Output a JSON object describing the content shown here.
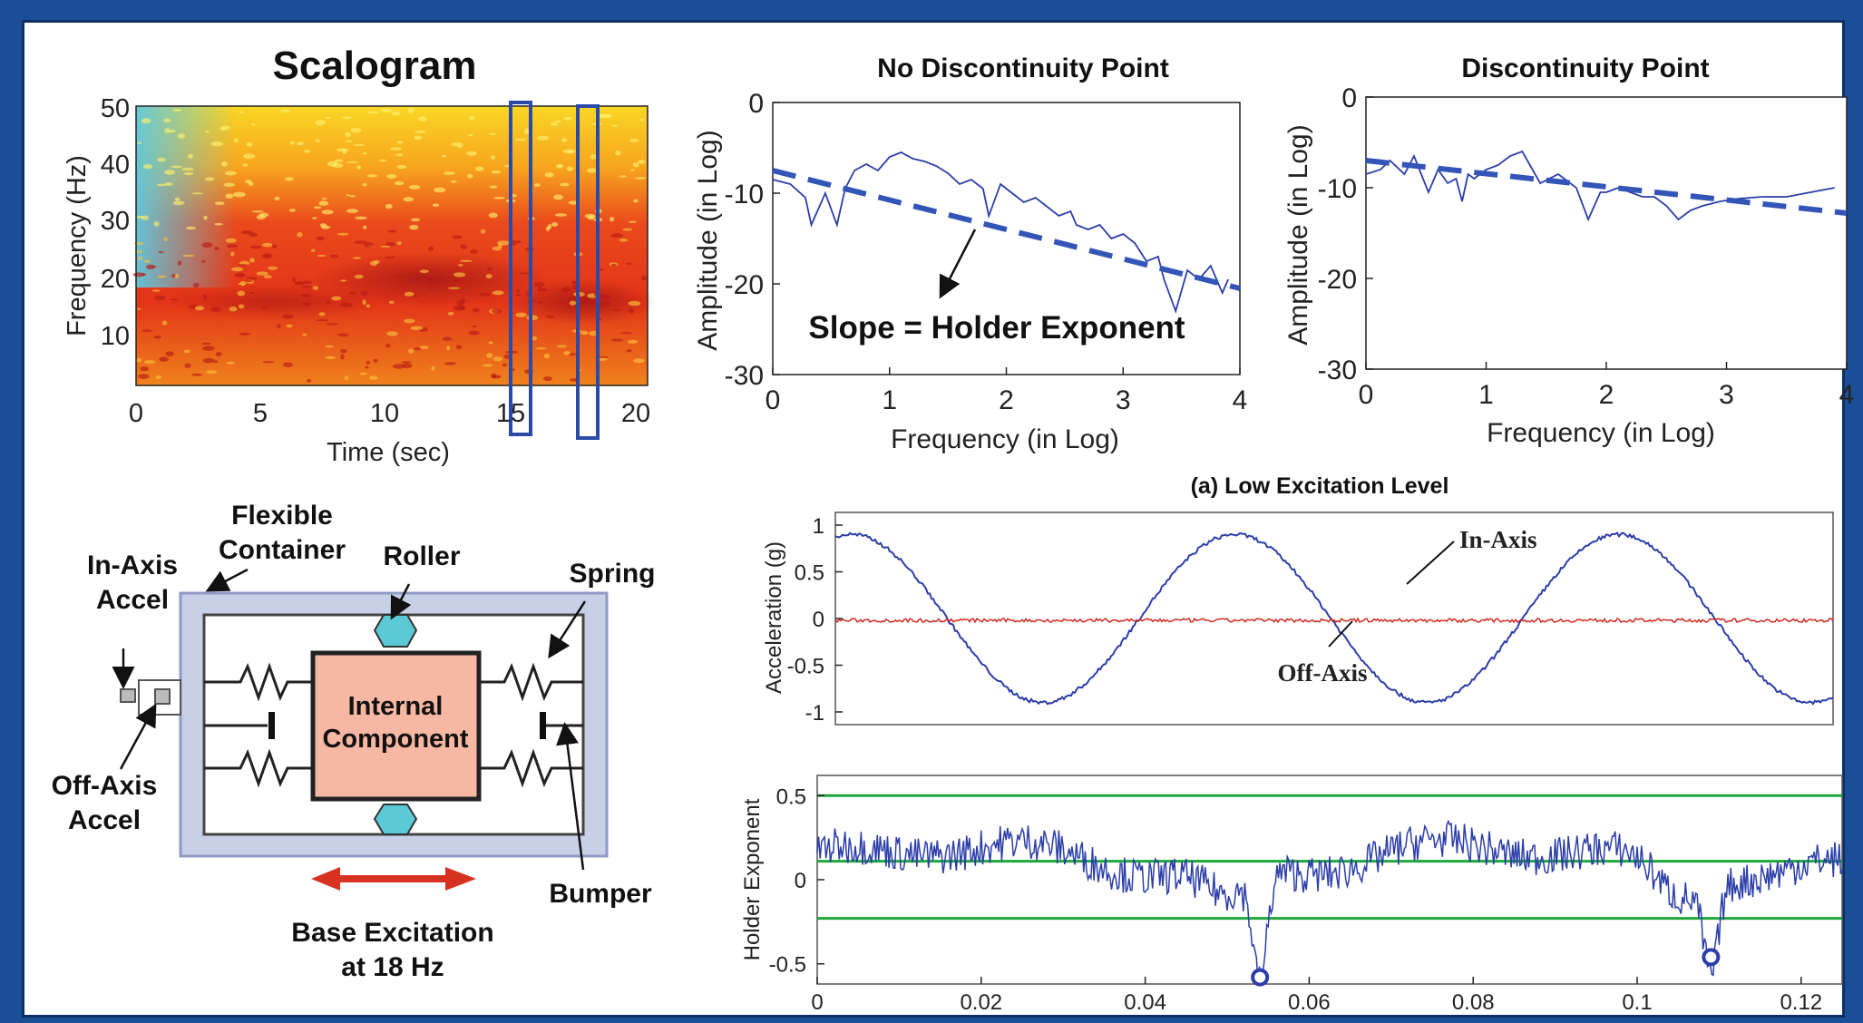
{
  "colors": {
    "frame": "#1a4f97",
    "blue": "#2c3ea8",
    "red": "#d02a20",
    "green": "#1ea83c",
    "dashed": "#3355b8",
    "component": "#f6b7a3",
    "roller": "#5cc9d6",
    "container": "#c8d0e8"
  },
  "scalogram": {
    "title": "Scalogram",
    "xlabel": "Time (sec)",
    "ylabel": "Frequency (Hz)",
    "xticks": [
      "0",
      "5",
      "10",
      "15",
      "20"
    ],
    "yticks": [
      "10",
      "20",
      "30",
      "40",
      "50"
    ]
  },
  "diagram": {
    "in_axis_accel": [
      "In-Axis",
      "Accel"
    ],
    "off_axis_accel": [
      "Off-Axis",
      "Accel"
    ],
    "flexible_container": [
      "Flexible",
      "Container"
    ],
    "roller": "Roller",
    "spring": "Spring",
    "bumper": "Bumper",
    "internal_component": [
      "Internal",
      "Component"
    ],
    "base_excitation": [
      "Base Excitation",
      "at 18 Hz"
    ]
  },
  "annotations": {
    "slope": "Slope = Holder Exponent",
    "caption": "(a) Low Excitation Level",
    "in_axis": "In-Axis",
    "off_axis": "Off-Axis"
  },
  "chart_data": [
    {
      "type": "heatmap",
      "title": "Scalogram",
      "xlabel": "Time (sec)",
      "ylabel": "Frequency (Hz)",
      "xlim": [
        0,
        20.5
      ],
      "ylim": [
        2,
        50
      ],
      "highlight_windows": [
        [
          15.3,
          15.8
        ],
        [
          17.8,
          18.6
        ]
      ]
    },
    {
      "type": "line",
      "title": "No Discontinuity Point",
      "xlabel": "Frequency (in Log)",
      "ylabel": "Amplitude (in Log)",
      "xlim": [
        0,
        4
      ],
      "ylim": [
        -30,
        0
      ],
      "xticks": [
        "0",
        "1",
        "2",
        "3",
        "4"
      ],
      "yticks": [
        "0",
        "-10",
        "-20",
        "-30"
      ],
      "series": [
        {
          "x": [
            0,
            0.15,
            0.28,
            0.33,
            0.45,
            0.55,
            0.62,
            0.7,
            0.8,
            0.9,
            1.0,
            1.1,
            1.2,
            1.3,
            1.4,
            1.5,
            1.6,
            1.7,
            1.8,
            1.85,
            1.95,
            2.05,
            2.15,
            2.25,
            2.35,
            2.45,
            2.55,
            2.6,
            2.7,
            2.8,
            2.9,
            3.0,
            3.1,
            3.2,
            3.3,
            3.35,
            3.45,
            3.55,
            3.65,
            3.75,
            3.85,
            3.9
          ],
          "y": [
            -8.5,
            -9.0,
            -10.5,
            -13.5,
            -10,
            -13.5,
            -9.5,
            -7.5,
            -6.8,
            -7.5,
            -6.0,
            -5.5,
            -6.2,
            -6.5,
            -7.0,
            -7.8,
            -9.0,
            -8.5,
            -9.5,
            -12.5,
            -9.0,
            -10.0,
            -11.0,
            -10.5,
            -11.5,
            -12.5,
            -12.0,
            -13.5,
            -14.0,
            -13.5,
            -15.0,
            -14.5,
            -15.5,
            -17.5,
            -17.0,
            -19.5,
            -23.0,
            -18.5,
            -19.5,
            -18.0,
            -21.0,
            -19.5
          ]
        },
        {
          "name": "Slope = Holder Exponent",
          "x": [
            0,
            4
          ],
          "y": [
            -7.5,
            -20.5
          ],
          "dashed": true
        }
      ]
    },
    {
      "type": "line",
      "title": "Discontinuity Point",
      "xlabel": "Frequency (in Log)",
      "ylabel": "Amplitude (in Log)",
      "xlim": [
        0,
        4
      ],
      "ylim": [
        -30,
        0
      ],
      "xticks": [
        "0",
        "1",
        "2",
        "3",
        "4"
      ],
      "yticks": [
        "0",
        "-10",
        "-20",
        "-30"
      ],
      "series": [
        {
          "x": [
            0,
            0.12,
            0.2,
            0.32,
            0.4,
            0.52,
            0.6,
            0.68,
            0.75,
            0.8,
            0.85,
            0.9,
            1.0,
            1.1,
            1.2,
            1.3,
            1.45,
            1.6,
            1.75,
            1.85,
            1.95,
            2.0,
            2.1,
            2.2,
            2.3,
            2.4,
            2.5,
            2.6,
            2.7,
            2.8,
            2.95,
            3.1,
            3.3,
            3.5,
            3.7,
            3.9
          ],
          "y": [
            -8.5,
            -8.0,
            -7.0,
            -8.5,
            -6.5,
            -10.5,
            -8.0,
            -9.5,
            -9.0,
            -11.5,
            -8.5,
            -9.0,
            -8.0,
            -7.5,
            -6.5,
            -6.0,
            -9.5,
            -8.5,
            -10.0,
            -13.5,
            -10.5,
            -10.5,
            -10.0,
            -10.5,
            -11.0,
            -11.0,
            -12.0,
            -13.5,
            -12.5,
            -12.0,
            -11.5,
            -11.2,
            -11.0,
            -11.0,
            -10.5,
            -10.0
          ]
        },
        {
          "x": [
            0,
            4
          ],
          "y": [
            -7.0,
            -12.8
          ],
          "dashed": true
        }
      ]
    },
    {
      "type": "line",
      "title": "(a) Low Excitation Level",
      "xlabel": "",
      "ylabel": "Acceleration (g)",
      "ylim": [
        -1,
        1
      ],
      "yticks": [
        "1",
        "0.5",
        "0",
        "-0.5",
        "-1"
      ],
      "series": [
        {
          "name": "In-Axis",
          "amplitude": 0.9,
          "cycles": 2.6,
          "phase_deg": 75
        },
        {
          "name": "Off-Axis",
          "amplitude": 0.02,
          "offset": -0.02
        }
      ]
    },
    {
      "type": "line",
      "xlabel": "",
      "ylabel": "Holder Exponent",
      "xlim": [
        0,
        0.125
      ],
      "ylim": [
        -0.62,
        0.62
      ],
      "xticks": [
        "0",
        "0.02",
        "0.04",
        "0.06",
        "0.08",
        "0.1",
        "0.12"
      ],
      "yticks": [
        "0.5",
        "0",
        "-0.5"
      ],
      "reference_lines": [
        0.5,
        0.11,
        -0.23
      ],
      "minima": [
        {
          "x": 0.054,
          "y": -0.58
        },
        {
          "x": 0.109,
          "y": -0.46
        }
      ]
    }
  ]
}
